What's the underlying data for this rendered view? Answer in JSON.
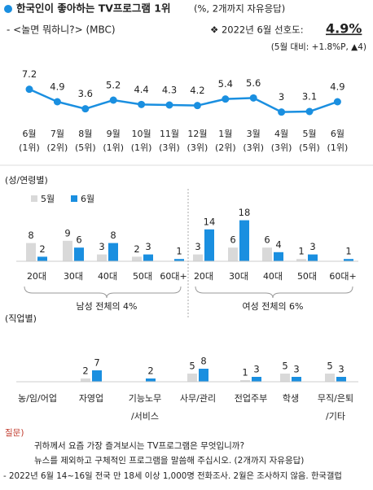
{
  "header": {
    "title": "한국인이 좋아하는 TV프로그램 1위",
    "note": "(%, 2개까지 자유응답)",
    "program": "- <놀면 뭐하니?> (MBC)",
    "pref_label": "❖  2022년 6월 선호도:",
    "pref_value": "4.9%",
    "change": "(5월 대비: +1.8%P, ▲4)"
  },
  "chart_data": [
    {
      "type": "line",
      "categories": [
        "6월",
        "7월",
        "8월",
        "9월",
        "10월",
        "11월",
        "12월",
        "1월",
        "3월",
        "4월",
        "5월",
        "6월"
      ],
      "ranks": [
        "(1위)",
        "(2위)",
        "(5위)",
        "(1위)",
        "(1위)",
        "(3위)",
        "(3위)",
        "(2위)",
        "(3위)",
        "(3위)",
        "(5위)",
        "(1위)"
      ],
      "values": [
        7.2,
        4.9,
        3.6,
        5.2,
        4.4,
        4.3,
        4.2,
        5.4,
        5.6,
        3.0,
        3.1,
        4.9
      ],
      "color": "#1a8fe0",
      "ylim": [
        1,
        10
      ]
    },
    {
      "type": "bar",
      "subtitle": "(성/연령별)",
      "categories": [
        "20대",
        "30대",
        "40대",
        "50대",
        "60대+",
        "20대",
        "30대",
        "40대",
        "50대",
        "60대+"
      ],
      "groups": [
        "남성 전체의 4%",
        "여성 전체의 6%"
      ],
      "series": [
        {
          "name": "5월",
          "color": "#d9d9d9",
          "values": [
            8,
            9,
            3,
            2,
            null,
            3,
            6,
            6,
            1,
            null
          ]
        },
        {
          "name": "6월",
          "color": "#1a8fe0",
          "values": [
            2,
            6,
            8,
            3,
            1,
            14,
            18,
            4,
            3,
            1
          ]
        }
      ],
      "ylim": [
        0,
        20
      ]
    },
    {
      "type": "bar",
      "subtitle": "(직업별)",
      "categories": [
        [
          "농/임/어업"
        ],
        [
          "자영업"
        ],
        [
          "기능노무",
          "/서비스"
        ],
        [
          "사무/관리"
        ],
        [
          "전업주부"
        ],
        [
          "학생"
        ],
        [
          "무직/은퇴",
          "/기타"
        ]
      ],
      "series": [
        {
          "name": "5월",
          "color": "#d9d9d9",
          "values": [
            null,
            2,
            null,
            5,
            1,
            5,
            5
          ]
        },
        {
          "name": "6월",
          "color": "#1a8fe0",
          "values": [
            null,
            7,
            2,
            8,
            3,
            3,
            3
          ]
        }
      ],
      "ylim": [
        0,
        20
      ]
    }
  ],
  "footer": {
    "q_label": "질문)",
    "q1": "귀하께서 요즘 가장 즐겨보시는 TV프로그램은 무엇입니까?",
    "q2": "뉴스를 제외하고 구체적인 프로그램을 말씀해 주십시오. (2개까지 자유응답)",
    "source": "- 2022년 6월 14~16일 전국 만 18세 이상 1,000명 전화조사. 2월은 조사하지 않음. 한국갤럽"
  }
}
